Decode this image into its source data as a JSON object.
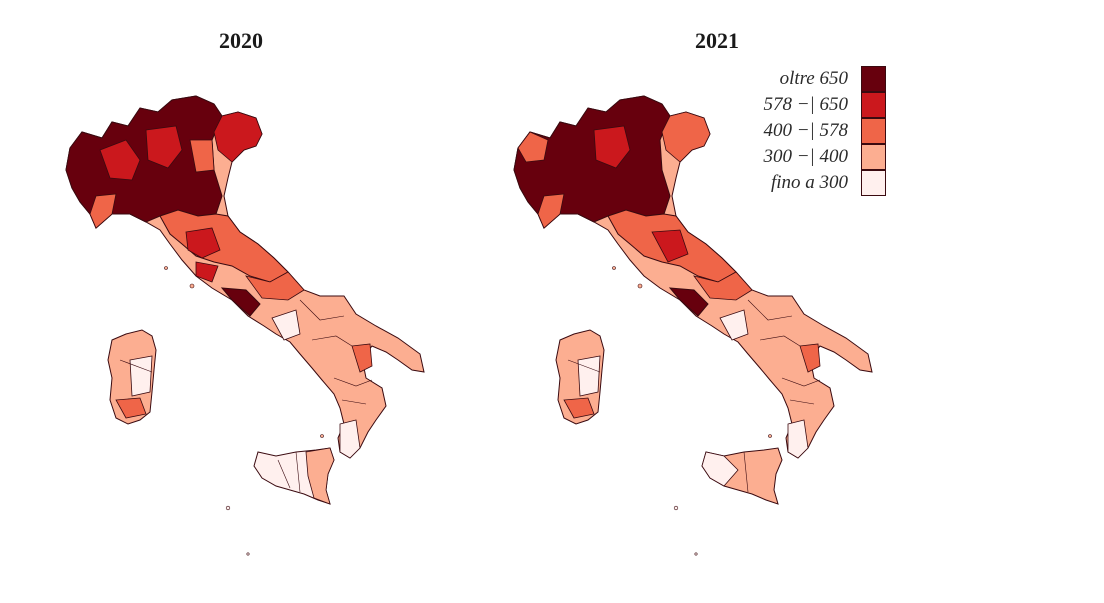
{
  "maps": [
    {
      "title": "2020"
    },
    {
      "title": "2021"
    }
  ],
  "legend": {
    "items": [
      {
        "label": "oltre 650",
        "color": "#67000d"
      },
      {
        "label": "578 −| 650",
        "color": "#cb181d"
      },
      {
        "label": "400 −| 578",
        "color": "#ef6548"
      },
      {
        "label": "300 −| 400",
        "color": "#fcae91"
      },
      {
        "label": "fino a 300",
        "color": "#fff0ee"
      }
    ]
  },
  "border_color": "#3a0a10"
}
